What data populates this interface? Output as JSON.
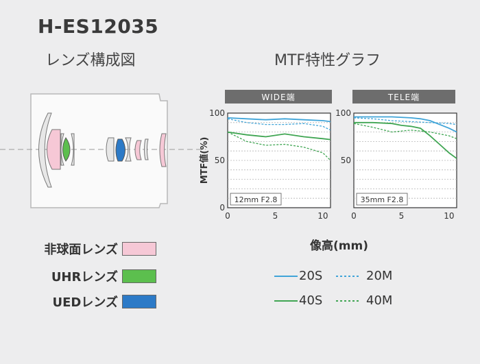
{
  "model_name": "H-ES12035",
  "lens_diagram_title": "レンズ構成図",
  "mtf_title": "MTF特性グラフ",
  "lens_legend": [
    {
      "label": "非球面レンズ",
      "color": "#f6c8d6"
    },
    {
      "label": "UHRレンズ",
      "color": "#5cbf4e"
    },
    {
      "label": "UEDレンズ",
      "color": "#2c7ac7"
    }
  ],
  "x_axis_label": "像高(mm)",
  "mtf_legend": [
    {
      "label": "20S",
      "style": "solid",
      "color": "#3fa4d8"
    },
    {
      "label": "20M",
      "style": "dashed",
      "color": "#3fa4d8"
    },
    {
      "label": "40S",
      "style": "solid",
      "color": "#3fa552"
    },
    {
      "label": "40M",
      "style": "dashed",
      "color": "#3fa552"
    }
  ],
  "chart_data": [
    {
      "type": "line",
      "title": "WIDE端",
      "note": "12mm F2.8",
      "ylabel": "MTF値(%)",
      "xlabel": "像高(mm)",
      "xlim": [
        0,
        10.8
      ],
      "ylim": [
        0,
        100
      ],
      "xticks": [
        0,
        5,
        10
      ],
      "yticks": [
        0,
        50,
        100
      ],
      "series": [
        {
          "name": "20S",
          "x": [
            0,
            2,
            4,
            6,
            8,
            10,
            10.8
          ],
          "y": [
            95,
            94,
            93,
            94,
            93,
            92,
            91
          ]
        },
        {
          "name": "20M",
          "x": [
            0,
            2,
            4,
            6,
            8,
            10,
            10.8
          ],
          "y": [
            94,
            90,
            88,
            88,
            89,
            86,
            82
          ]
        },
        {
          "name": "40S",
          "x": [
            0,
            2,
            4,
            6,
            8,
            10,
            10.8
          ],
          "y": [
            80,
            77,
            75,
            78,
            75,
            73,
            72
          ]
        },
        {
          "name": "40M",
          "x": [
            0,
            2,
            4,
            6,
            8,
            10,
            10.8
          ],
          "y": [
            80,
            70,
            66,
            67,
            64,
            58,
            50
          ]
        }
      ]
    },
    {
      "type": "line",
      "title": "TELE端",
      "note": "35mm F2.8",
      "ylabel": "",
      "xlabel": "像高(mm)",
      "xlim": [
        0,
        10.8
      ],
      "ylim": [
        0,
        100
      ],
      "xticks": [
        0,
        5,
        10
      ],
      "yticks": [
        50,
        100
      ],
      "series": [
        {
          "name": "20S",
          "x": [
            0,
            2,
            4,
            6,
            7,
            8,
            9,
            10,
            10.8
          ],
          "y": [
            96,
            96,
            96,
            95,
            94,
            92,
            88,
            84,
            80
          ]
        },
        {
          "name": "20M",
          "x": [
            0,
            2,
            4,
            6,
            8,
            10,
            10.8
          ],
          "y": [
            95,
            94,
            92,
            91,
            90,
            89,
            88
          ]
        },
        {
          "name": "40S",
          "x": [
            0,
            2,
            4,
            5,
            6,
            7,
            8,
            9,
            10,
            10.8
          ],
          "y": [
            90,
            90,
            89,
            87,
            86,
            84,
            76,
            67,
            58,
            52
          ]
        },
        {
          "name": "40M",
          "x": [
            0,
            2,
            4,
            6,
            8,
            10,
            10.8
          ],
          "y": [
            89,
            85,
            80,
            82,
            80,
            76,
            73
          ]
        }
      ]
    }
  ]
}
